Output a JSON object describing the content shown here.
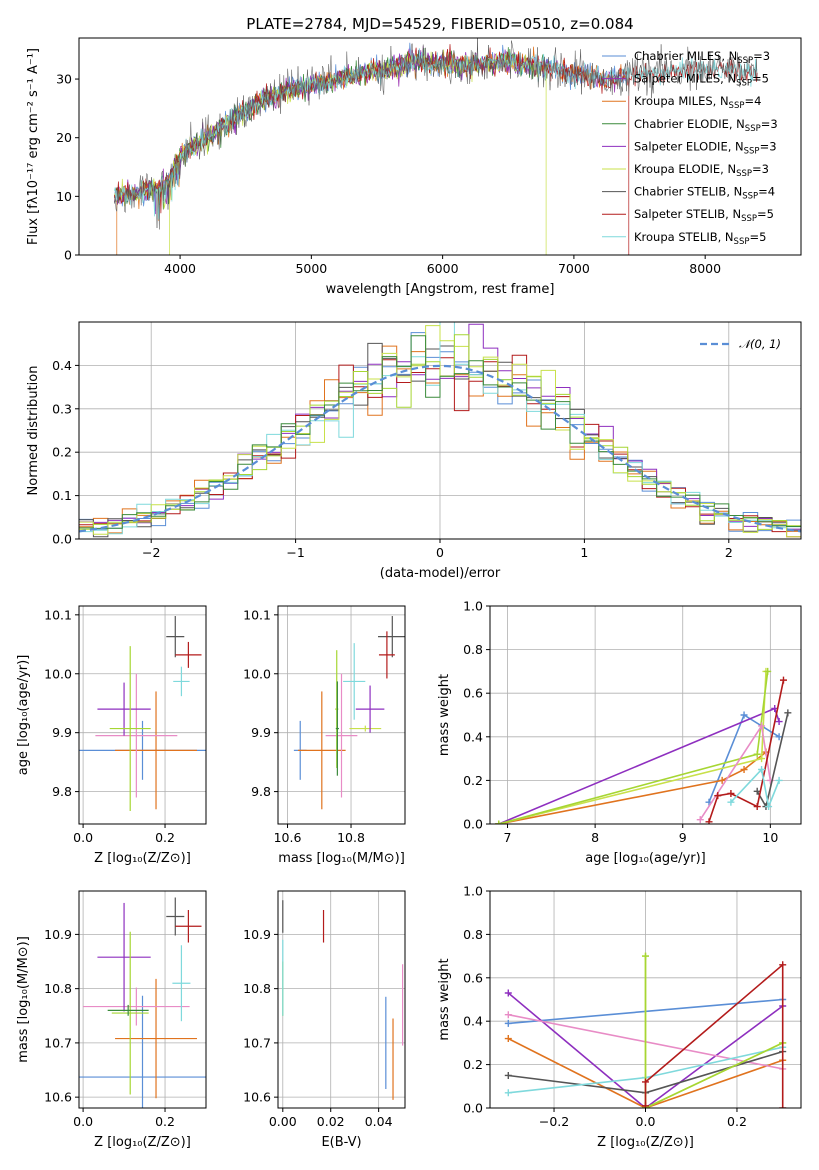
{
  "figure": {
    "title": "PLATE=2784, MJD=54529, FIBERID=0510, z=0.084"
  },
  "colors": {
    "Chabrier MILES": "#5a8ed6",
    "Salpeter MILES": "#9a2fb0",
    "Kroupa MILES": "#e0731e",
    "Chabrier ELODIE": "#3a8a3a",
    "Salpeter ELODIE": "#8e2fbf",
    "Kroupa ELODIE": "#c8e04a",
    "Chabrier STELIB": "#555555",
    "Salpeter STELIB": "#b31b1b",
    "Kroupa STELIB": "#7fd9dc",
    "pink": "#e88cc6",
    "lime": "#a6d633"
  },
  "chart_data": [
    {
      "id": "spectrum",
      "type": "line",
      "title": "PLATE=2784, MJD=54529, FIBERID=0510, z=0.084",
      "xlabel": "wavelength [Angstrom, rest frame]",
      "ylabel": "Flux [fλ10⁻¹⁷ erg cm⁻² s⁻¹ A⁻¹]",
      "xlim": [
        3230,
        8730
      ],
      "ylim": [
        0,
        37
      ],
      "xticks": [
        4000,
        5000,
        6000,
        7000,
        8000
      ],
      "yticks": [
        0,
        10,
        20,
        30
      ],
      "legend": [
        {
          "name": "Chabrier MILES",
          "label": "Chabrier MILES, N",
          "sub": "SSP",
          "n": "=3"
        },
        {
          "name": "Salpeter MILES",
          "label": "Salpeter MILES, N",
          "sub": "SSP",
          "n": "=5"
        },
        {
          "name": "Kroupa MILES",
          "label": "Kroupa MILES, N",
          "sub": "SSP",
          "n": "=4"
        },
        {
          "name": "Chabrier ELODIE",
          "label": "Chabrier ELODIE, N",
          "sub": "SSP",
          "n": "=3"
        },
        {
          "name": "Salpeter ELODIE",
          "label": "Salpeter ELODIE, N",
          "sub": "SSP",
          "n": "=3"
        },
        {
          "name": "Kroupa ELODIE",
          "label": "Kroupa ELODIE, N",
          "sub": "SSP",
          "n": "=3"
        },
        {
          "name": "Chabrier STELIB",
          "label": "Chabrier STELIB, N",
          "sub": "SSP",
          "n": "=4"
        },
        {
          "name": "Salpeter STELIB",
          "label": "Salpeter STELIB, N",
          "sub": "SSP",
          "n": "=5"
        },
        {
          "name": "Kroupa STELIB",
          "label": "Kroupa STELIB, N",
          "sub": "SSP",
          "n": "=5"
        }
      ],
      "continuum": [
        [
          3500,
          10
        ],
        [
          3700,
          10.5
        ],
        [
          3900,
          12
        ],
        [
          4000,
          17
        ],
        [
          4200,
          20
        ],
        [
          4400,
          23
        ],
        [
          4600,
          26
        ],
        [
          4800,
          28
        ],
        [
          5000,
          29
        ],
        [
          5200,
          30
        ],
        [
          5500,
          31.5
        ],
        [
          5800,
          33
        ],
        [
          6000,
          32.5
        ],
        [
          6200,
          32.5
        ],
        [
          6500,
          33
        ],
        [
          6800,
          32
        ],
        [
          7000,
          31
        ],
        [
          7200,
          30
        ],
        [
          7400,
          30.5
        ],
        [
          7600,
          31
        ],
        [
          7900,
          31.5
        ],
        [
          8300,
          31.5
        ]
      ],
      "drops": [
        {
          "series": "Kroupa MILES",
          "x": 3520
        },
        {
          "series": "Kroupa ELODIE",
          "x": 3920
        },
        {
          "series": "Kroupa ELODIE",
          "x": 6790
        },
        {
          "series": "Salpeter STELIB",
          "x": 7420
        }
      ]
    },
    {
      "id": "residuals",
      "type": "histogram",
      "xlabel": "(data-model)/error",
      "ylabel": "Normed distribution",
      "xlim": [
        -2.5,
        2.5
      ],
      "ylim": [
        0,
        0.5
      ],
      "xticks": [
        -2,
        -1,
        0,
        1,
        2
      ],
      "xtick_labels": [
        "−2",
        "−1",
        "0",
        "1",
        "2"
      ],
      "yticks": [
        0.0,
        0.1,
        0.2,
        0.3,
        0.4
      ],
      "ytick_labels": [
        "0.0",
        "0.1",
        "0.2",
        "0.3",
        "0.4"
      ],
      "bin_width": 0.1,
      "legend": "𝒩(0, 1)",
      "gaussian": {
        "mean": 0,
        "sigma": 1
      }
    },
    {
      "id": "z-age",
      "type": "errorbar",
      "xlabel": "Z [log₁₀(Z/Z⊙)]",
      "ylabel": "age  [log₁₀(age/yr)]",
      "xlim": [
        -0.01,
        0.3
      ],
      "ylim": [
        9.745,
        10.115
      ],
      "xticks": [
        0.0,
        0.2
      ],
      "xtick_labels": [
        "0.0",
        "0.2"
      ],
      "yticks": [
        9.8,
        9.9,
        10.0,
        10.1
      ],
      "ytick_labels": [
        "9.8",
        "9.9",
        "10.0",
        "10.1"
      ],
      "points": [
        {
          "color": "Chabrier MILES",
          "x": 0.145,
          "xerr": 0.16,
          "y": 9.87,
          "yerr": 0.05
        },
        {
          "color": "Kroupa MILES",
          "x": 0.178,
          "xerr": 0.1,
          "y": 9.87,
          "yerr": 0.1
        },
        {
          "color": "pink",
          "x": 0.13,
          "xerr": 0.1,
          "y": 9.895,
          "yerr": 0.105
        },
        {
          "color": "Salpeter ELODIE",
          "x": 0.1,
          "xerr": 0.065,
          "y": 9.94,
          "yerr": 0.045
        },
        {
          "color": "lime",
          "x": 0.115,
          "xerr": 0.05,
          "y": 9.907,
          "yerr": 0.14
        },
        {
          "color": "Chabrier STELIB",
          "x": 0.225,
          "xerr": 0.022,
          "y": 10.063,
          "yerr": 0.035
        },
        {
          "color": "Salpeter STELIB",
          "x": 0.257,
          "xerr": 0.032,
          "y": 10.032,
          "yerr": 0.022
        },
        {
          "color": "Kroupa STELIB",
          "x": 0.24,
          "xerr": 0.02,
          "y": 9.987,
          "yerr": 0.025
        }
      ]
    },
    {
      "id": "mass-age",
      "type": "errorbar",
      "xlabel": "mass [log₁₀(M/M⊙)]",
      "xlim": [
        10.57,
        10.97
      ],
      "ylim": [
        9.745,
        10.115
      ],
      "xticks": [
        10.6,
        10.8
      ],
      "xtick_labels": [
        "10.6",
        "10.8"
      ],
      "yticks": [
        9.8,
        9.9,
        10.0,
        10.1
      ],
      "ytick_labels": [
        "9.8",
        "9.9",
        "10.0",
        "10.1"
      ],
      "points": [
        {
          "color": "Chabrier MILES",
          "x": 10.64,
          "xerr": 0.02,
          "y": 9.87,
          "yerr": 0.05
        },
        {
          "color": "Kroupa MILES",
          "x": 10.708,
          "xerr": 0.075,
          "y": 9.87,
          "yerr": 0.1
        },
        {
          "color": "pink",
          "x": 10.77,
          "xerr": 0.05,
          "y": 9.895,
          "yerr": 0.105
        },
        {
          "color": "lime",
          "x": 10.755,
          "xerr": 0.005,
          "y": 9.94,
          "yerr": 0.1
        },
        {
          "color": "Chabrier ELODIE",
          "x": 10.757,
          "xerr": 0.005,
          "y": 9.907,
          "yerr": 0.08
        },
        {
          "color": "Kroupa ELODIE",
          "x": 10.845,
          "xerr": 0.05,
          "y": 9.907,
          "yerr": 0.005
        },
        {
          "color": "Salpeter ELODIE",
          "x": 10.86,
          "xerr": 0.045,
          "y": 9.94,
          "yerr": 0.04
        },
        {
          "color": "Kroupa STELIB",
          "x": 10.81,
          "xerr": 0.035,
          "y": 9.987,
          "yerr": 0.065
        },
        {
          "color": "Chabrier STELIB",
          "x": 10.93,
          "xerr": 0.045,
          "y": 10.063,
          "yerr": 0.035
        },
        {
          "color": "Salpeter STELIB",
          "x": 10.913,
          "xerr": 0.025,
          "y": 10.032,
          "yerr": 0.04
        }
      ]
    },
    {
      "id": "age-weight",
      "type": "line",
      "xlabel": "age  [log₁₀(age/yr)]",
      "ylabel": "mass weight",
      "xlim": [
        6.8,
        10.35
      ],
      "ylim": [
        0,
        1
      ],
      "xticks": [
        7,
        8,
        9,
        10
      ],
      "yticks": [
        0.0,
        0.2,
        0.4,
        0.6,
        0.8,
        1.0
      ],
      "ytick_labels": [
        "0.0",
        "0.2",
        "0.4",
        "0.6",
        "0.8",
        "1.0"
      ],
      "series": [
        {
          "color": "Chabrier MILES",
          "points": [
            [
              9.3,
              0.1
            ],
            [
              9.7,
              0.5
            ],
            [
              10.1,
              0.4
            ]
          ]
        },
        {
          "color": "Kroupa MILES",
          "points": [
            [
              6.9,
              0.0
            ],
            [
              9.45,
              0.2
            ],
            [
              9.7,
              0.25
            ],
            [
              9.95,
              0.33
            ]
          ]
        },
        {
          "color": "Salpeter ELODIE",
          "points": [
            [
              6.9,
              0.0
            ],
            [
              10.05,
              0.53
            ],
            [
              10.1,
              0.47
            ]
          ]
        },
        {
          "color": "Kroupa ELODIE",
          "points": [
            [
              6.9,
              0.0
            ],
            [
              9.9,
              0.3
            ],
            [
              9.95,
              0.7
            ]
          ]
        },
        {
          "color": "lime",
          "points": [
            [
              6.9,
              0.0
            ],
            [
              9.85,
              0.32
            ],
            [
              9.97,
              0.7
            ]
          ]
        },
        {
          "color": "pink",
          "points": [
            [
              9.2,
              0.02
            ],
            [
              9.9,
              0.45
            ],
            [
              10.0,
              0.2
            ]
          ]
        },
        {
          "color": "Chabrier STELIB",
          "points": [
            [
              9.85,
              0.15
            ],
            [
              9.95,
              0.08
            ],
            [
              10.2,
              0.51
            ]
          ]
        },
        {
          "color": "Salpeter STELIB",
          "points": [
            [
              9.3,
              0.01
            ],
            [
              9.4,
              0.13
            ],
            [
              9.55,
              0.14
            ],
            [
              9.85,
              0.08
            ],
            [
              10.15,
              0.66
            ]
          ]
        },
        {
          "color": "Kroupa STELIB",
          "points": [
            [
              9.55,
              0.1
            ],
            [
              9.9,
              0.25
            ],
            [
              9.98,
              0.08
            ],
            [
              10.1,
              0.2
            ]
          ]
        }
      ]
    },
    {
      "id": "z-mass",
      "type": "errorbar",
      "xlabel": "Z [log₁₀(Z/Z⊙)]",
      "ylabel": "mass [log₁₀(M/M⊙)]",
      "xlim": [
        -0.01,
        0.3
      ],
      "ylim": [
        10.58,
        10.98
      ],
      "xticks": [
        0.0,
        0.2
      ],
      "xtick_labels": [
        "0.0",
        "0.2"
      ],
      "yticks": [
        10.6,
        10.7,
        10.8,
        10.9
      ],
      "ytick_labels": [
        "10.6",
        "10.7",
        "10.8",
        "10.9"
      ],
      "points": [
        {
          "color": "Chabrier MILES",
          "x": 0.145,
          "xerr": 0.16,
          "y": 10.637,
          "yerr": 0.15
        },
        {
          "color": "Kroupa MILES",
          "x": 0.178,
          "xerr": 0.1,
          "y": 10.708,
          "yerr": 0.11
        },
        {
          "color": "pink",
          "x": 0.13,
          "xerr": 0.13,
          "y": 10.767,
          "yerr": 0.035
        },
        {
          "color": "Salpeter ELODIE",
          "x": 0.1,
          "xerr": 0.065,
          "y": 10.858,
          "yerr": 0.1
        },
        {
          "color": "lime",
          "x": 0.115,
          "xerr": 0.045,
          "y": 10.755,
          "yerr": 0.15
        },
        {
          "color": "Chabrier ELODIE",
          "x": 0.11,
          "xerr": 0.05,
          "y": 10.76,
          "yerr": 0.01
        },
        {
          "color": "Chabrier STELIB",
          "x": 0.225,
          "xerr": 0.022,
          "y": 10.933,
          "yerr": 0.035
        },
        {
          "color": "Salpeter STELIB",
          "x": 0.257,
          "xerr": 0.032,
          "y": 10.915,
          "yerr": 0.03
        },
        {
          "color": "Kroupa STELIB",
          "x": 0.24,
          "xerr": 0.022,
          "y": 10.81,
          "yerr": 0.07
        }
      ]
    },
    {
      "id": "ebv-mass",
      "type": "errorbar",
      "xlabel": "E(B-V)",
      "xlim": [
        -0.002,
        0.051
      ],
      "ylim": [
        10.58,
        10.98
      ],
      "xticks": [
        0.0,
        0.02,
        0.04
      ],
      "xtick_labels": [
        "0.00",
        "0.02",
        "0.04"
      ],
      "yticks": [
        10.6,
        10.7,
        10.8,
        10.9
      ],
      "ytick_labels": [
        "10.6",
        "10.7",
        "10.8",
        "10.9"
      ],
      "points": [
        {
          "color": "Chabrier STELIB",
          "x": 0.0,
          "y": 10.933,
          "yerr": 0.03
        },
        {
          "color": "lime",
          "x": 0.0,
          "y": 10.8,
          "yerr": 0.05
        },
        {
          "color": "Kroupa STELIB",
          "x": 0.0,
          "y": 10.82,
          "yerr": 0.07
        },
        {
          "color": "Salpeter STELIB",
          "x": 0.017,
          "y": 10.915,
          "yerr": 0.03
        },
        {
          "color": "Chabrier MILES",
          "x": 0.043,
          "y": 10.7,
          "yerr": 0.085
        },
        {
          "color": "Kroupa MILES",
          "x": 0.046,
          "y": 10.67,
          "yerr": 0.075
        },
        {
          "color": "pink",
          "x": 0.05,
          "y": 10.77,
          "yerr": 0.075
        }
      ]
    },
    {
      "id": "z-weight",
      "type": "line",
      "xlabel": "Z [log₁₀(Z/Z⊙)]",
      "ylabel": "mass weight",
      "xlim": [
        -0.34,
        0.34
      ],
      "ylim": [
        0,
        1
      ],
      "xticks": [
        -0.2,
        0.0,
        0.2
      ],
      "xtick_labels": [
        "−0.2",
        "0.0",
        "0.2"
      ],
      "yticks": [
        0.0,
        0.2,
        0.4,
        0.6,
        0.8,
        1.0
      ],
      "ytick_labels": [
        "0.0",
        "0.2",
        "0.4",
        "0.6",
        "0.8",
        "1.0"
      ],
      "series": [
        {
          "color": "Chabrier MILES",
          "points": [
            [
              -0.3,
              0.39
            ],
            [
              0.3,
              0.5
            ]
          ]
        },
        {
          "color": "Salpeter ELODIE",
          "points": [
            [
              -0.3,
              0.53
            ],
            [
              0.0,
              0.0
            ],
            [
              0.3,
              0.47
            ]
          ]
        },
        {
          "color": "Kroupa MILES",
          "points": [
            [
              -0.3,
              0.32
            ],
            [
              0.0,
              0.0
            ],
            [
              0.3,
              0.22
            ]
          ]
        },
        {
          "color": "pink",
          "points": [
            [
              -0.3,
              0.43
            ],
            [
              0.3,
              0.18
            ]
          ]
        },
        {
          "color": "Chabrier STELIB",
          "points": [
            [
              -0.3,
              0.15
            ],
            [
              0.0,
              0.07
            ],
            [
              0.3,
              0.26
            ]
          ]
        },
        {
          "color": "Kroupa STELIB",
          "points": [
            [
              -0.3,
              0.07
            ],
            [
              0.0,
              0.14
            ],
            [
              0.3,
              0.28
            ]
          ]
        },
        {
          "color": "Kroupa ELODIE",
          "points": [
            [
              0.0,
              0.7
            ],
            [
              0.0,
              0.0
            ],
            [
              0.3,
              0.3
            ]
          ]
        },
        {
          "color": "lime",
          "points": [
            [
              0.0,
              0.7
            ],
            [
              0.0,
              0.0
            ],
            [
              0.3,
              0.3
            ]
          ]
        },
        {
          "color": "Salpeter STELIB",
          "points": [
            [
              0.0,
              0.01
            ],
            [
              0.0,
              0.12
            ],
            [
              0.3,
              0.66
            ],
            [
              0.3,
              0.0
            ]
          ]
        }
      ]
    }
  ]
}
